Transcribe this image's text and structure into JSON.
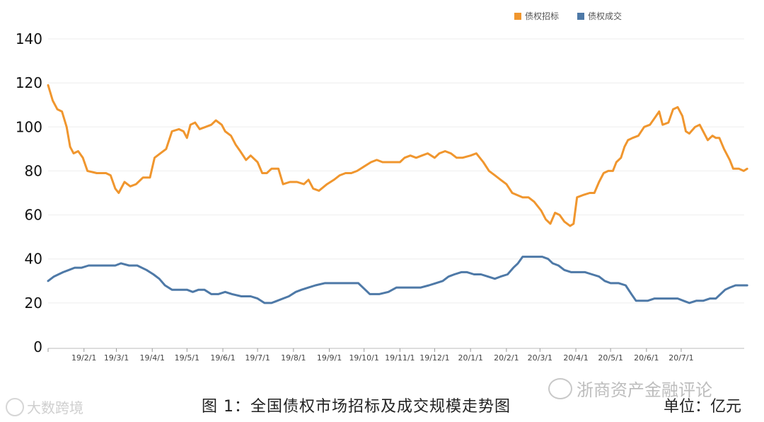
{
  "legend": [
    {
      "label": "债权招标",
      "color": "#F0962E"
    },
    {
      "label": "债权成交",
      "color": "#4E79A7"
    }
  ],
  "caption": "图 1：全国债权市场招标及成交规模走势图",
  "unit": "单位：亿元",
  "watermark_left": "大数跨境",
  "watermark_right": "浙商资产金融评论",
  "watermark_left_icon": "weibo-logo-icon",
  "watermark_right_icon": "wechat-logo-icon",
  "chart_data": {
    "type": "line",
    "y_ticks": [
      0,
      20,
      40,
      60,
      80,
      100,
      120,
      140
    ],
    "ylim": [
      0,
      140
    ],
    "x_ticks": [
      "19/2/1",
      "19/3/1",
      "19/4/1",
      "19/5/1",
      "19/6/1",
      "19/7/1",
      "19/8/1",
      "19/9/1",
      "19/10/1",
      "19/11/1",
      "19/12/1",
      "20/1/1",
      "20/2/1",
      "20/3/1",
      "20/4/1",
      "20/5/1",
      "20/6/1",
      "20/7/1"
    ],
    "x_start": "2019-01-01",
    "x_end": "2020-07-31",
    "grid": "horizontal",
    "series": [
      {
        "name": "债权招标",
        "color": "#F0962E",
        "points": [
          [
            "2019-01-01",
            119
          ],
          [
            "2019-01-05",
            112
          ],
          [
            "2019-01-09",
            108
          ],
          [
            "2019-01-13",
            107
          ],
          [
            "2019-01-17",
            100
          ],
          [
            "2019-01-20",
            91
          ],
          [
            "2019-01-23",
            88
          ],
          [
            "2019-01-27",
            89
          ],
          [
            "2019-01-31",
            86
          ],
          [
            "2019-02-04",
            80
          ],
          [
            "2019-02-12",
            79
          ],
          [
            "2019-02-20",
            79
          ],
          [
            "2019-02-24",
            78
          ],
          [
            "2019-02-28",
            72
          ],
          [
            "2019-03-03",
            70
          ],
          [
            "2019-03-08",
            75
          ],
          [
            "2019-03-13",
            73
          ],
          [
            "2019-03-18",
            74
          ],
          [
            "2019-03-24",
            77
          ],
          [
            "2019-03-30",
            77
          ],
          [
            "2019-04-03",
            86
          ],
          [
            "2019-04-08",
            88
          ],
          [
            "2019-04-13",
            90
          ],
          [
            "2019-04-18",
            98
          ],
          [
            "2019-04-24",
            99
          ],
          [
            "2019-04-28",
            98
          ],
          [
            "2019-05-01",
            95
          ],
          [
            "2019-05-04",
            101
          ],
          [
            "2019-05-08",
            102
          ],
          [
            "2019-05-12",
            99
          ],
          [
            "2019-05-17",
            100
          ],
          [
            "2019-05-22",
            101
          ],
          [
            "2019-05-26",
            103
          ],
          [
            "2019-05-31",
            101
          ],
          [
            "2019-06-03",
            98
          ],
          [
            "2019-06-08",
            96
          ],
          [
            "2019-06-12",
            92
          ],
          [
            "2019-06-16",
            89
          ],
          [
            "2019-06-21",
            85
          ],
          [
            "2019-06-25",
            87
          ],
          [
            "2019-07-01",
            84
          ],
          [
            "2019-07-05",
            79
          ],
          [
            "2019-07-09",
            79
          ],
          [
            "2019-07-13",
            81
          ],
          [
            "2019-07-19",
            81
          ],
          [
            "2019-07-23",
            74
          ],
          [
            "2019-07-29",
            75
          ],
          [
            "2019-08-04",
            75
          ],
          [
            "2019-08-10",
            74
          ],
          [
            "2019-08-14",
            76
          ],
          [
            "2019-08-18",
            72
          ],
          [
            "2019-08-23",
            71
          ],
          [
            "2019-08-30",
            74
          ],
          [
            "2019-09-05",
            76
          ],
          [
            "2019-09-10",
            78
          ],
          [
            "2019-09-15",
            79
          ],
          [
            "2019-09-20",
            79
          ],
          [
            "2019-09-25",
            80
          ],
          [
            "2019-10-01",
            82
          ],
          [
            "2019-10-07",
            84
          ],
          [
            "2019-10-12",
            85
          ],
          [
            "2019-10-17",
            84
          ],
          [
            "2019-10-24",
            84
          ],
          [
            "2019-11-01",
            84
          ],
          [
            "2019-11-05",
            86
          ],
          [
            "2019-11-10",
            87
          ],
          [
            "2019-11-15",
            86
          ],
          [
            "2019-11-20",
            87
          ],
          [
            "2019-11-25",
            88
          ],
          [
            "2019-12-01",
            86
          ],
          [
            "2019-12-05",
            88
          ],
          [
            "2019-12-10",
            89
          ],
          [
            "2019-12-15",
            88
          ],
          [
            "2019-12-20",
            86
          ],
          [
            "2019-12-25",
            86
          ],
          [
            "2020-01-01",
            87
          ],
          [
            "2020-01-06",
            88
          ],
          [
            "2020-01-12",
            84
          ],
          [
            "2020-01-17",
            80
          ],
          [
            "2020-01-22",
            78
          ],
          [
            "2020-01-27",
            76
          ],
          [
            "2020-02-01",
            74
          ],
          [
            "2020-02-06",
            70
          ],
          [
            "2020-02-15",
            68
          ],
          [
            "2020-02-20",
            68
          ],
          [
            "2020-02-25",
            66
          ],
          [
            "2020-03-02",
            62
          ],
          [
            "2020-03-06",
            58
          ],
          [
            "2020-03-10",
            56
          ],
          [
            "2020-03-14",
            61
          ],
          [
            "2020-03-18",
            60
          ],
          [
            "2020-03-22",
            57
          ],
          [
            "2020-03-27",
            55
          ],
          [
            "2020-03-30",
            56
          ],
          [
            "2020-04-02",
            68
          ],
          [
            "2020-04-07",
            69
          ],
          [
            "2020-04-13",
            70
          ],
          [
            "2020-04-17",
            70
          ],
          [
            "2020-04-21",
            75
          ],
          [
            "2020-04-25",
            79
          ],
          [
            "2020-04-29",
            80
          ],
          [
            "2020-05-03",
            80
          ],
          [
            "2020-05-06",
            84
          ],
          [
            "2020-05-10",
            86
          ],
          [
            "2020-05-13",
            91
          ],
          [
            "2020-05-16",
            94
          ],
          [
            "2020-05-20",
            95
          ],
          [
            "2020-05-25",
            96
          ],
          [
            "2020-05-30",
            100
          ],
          [
            "2020-06-04",
            101
          ],
          [
            "2020-06-08",
            104
          ],
          [
            "2020-06-12",
            107
          ],
          [
            "2020-06-15",
            101
          ],
          [
            "2020-06-20",
            102
          ],
          [
            "2020-06-24",
            108
          ],
          [
            "2020-06-28",
            109
          ],
          [
            "2020-07-02",
            105
          ],
          [
            "2020-07-05",
            98
          ],
          [
            "2020-07-08",
            97
          ],
          [
            "2020-07-13",
            100
          ],
          [
            "2020-07-17",
            101
          ],
          [
            "2020-07-20",
            98
          ],
          [
            "2020-07-24",
            94
          ],
          [
            "2020-07-28",
            96
          ],
          [
            "2020-07-31",
            95
          ],
          [
            "2020-08-03",
            95
          ],
          [
            "2020-08-07",
            90
          ],
          [
            "2020-08-12",
            85
          ],
          [
            "2020-08-15",
            81
          ],
          [
            "2020-08-20",
            81
          ],
          [
            "2020-08-24",
            80
          ],
          [
            "2020-08-27",
            81
          ]
        ]
      },
      {
        "name": "债权成交",
        "color": "#4E79A7",
        "points": [
          [
            "2019-01-01",
            30
          ],
          [
            "2019-01-06",
            32
          ],
          [
            "2019-01-10",
            33
          ],
          [
            "2019-01-14",
            34
          ],
          [
            "2019-01-19",
            35
          ],
          [
            "2019-01-24",
            36
          ],
          [
            "2019-01-30",
            36
          ],
          [
            "2019-02-05",
            37
          ],
          [
            "2019-02-12",
            37
          ],
          [
            "2019-02-20",
            37
          ],
          [
            "2019-02-28",
            37
          ],
          [
            "2019-03-05",
            38
          ],
          [
            "2019-03-12",
            37
          ],
          [
            "2019-03-19",
            37
          ],
          [
            "2019-03-27",
            35
          ],
          [
            "2019-04-02",
            33
          ],
          [
            "2019-04-07",
            31
          ],
          [
            "2019-04-12",
            28
          ],
          [
            "2019-04-18",
            26
          ],
          [
            "2019-04-24",
            26
          ],
          [
            "2019-05-01",
            26
          ],
          [
            "2019-05-06",
            25
          ],
          [
            "2019-05-11",
            26
          ],
          [
            "2019-05-16",
            26
          ],
          [
            "2019-05-22",
            24
          ],
          [
            "2019-05-28",
            24
          ],
          [
            "2019-06-03",
            25
          ],
          [
            "2019-06-09",
            24
          ],
          [
            "2019-06-17",
            23
          ],
          [
            "2019-06-25",
            23
          ],
          [
            "2019-07-01",
            22
          ],
          [
            "2019-07-07",
            20
          ],
          [
            "2019-07-13",
            20
          ],
          [
            "2019-07-18",
            21
          ],
          [
            "2019-07-23",
            22
          ],
          [
            "2019-07-28",
            23
          ],
          [
            "2019-08-03",
            25
          ],
          [
            "2019-08-08",
            26
          ],
          [
            "2019-08-14",
            27
          ],
          [
            "2019-08-20",
            28
          ],
          [
            "2019-08-28",
            29
          ],
          [
            "2019-09-05",
            29
          ],
          [
            "2019-09-13",
            29
          ],
          [
            "2019-09-20",
            29
          ],
          [
            "2019-09-26",
            29
          ],
          [
            "2019-10-02",
            26
          ],
          [
            "2019-10-06",
            24
          ],
          [
            "2019-10-14",
            24
          ],
          [
            "2019-10-22",
            25
          ],
          [
            "2019-10-29",
            27
          ],
          [
            "2019-11-05",
            27
          ],
          [
            "2019-11-12",
            27
          ],
          [
            "2019-11-19",
            27
          ],
          [
            "2019-11-26",
            28
          ],
          [
            "2019-12-02",
            29
          ],
          [
            "2019-12-08",
            30
          ],
          [
            "2019-12-13",
            32
          ],
          [
            "2019-12-18",
            33
          ],
          [
            "2019-12-24",
            34
          ],
          [
            "2019-12-29",
            34
          ],
          [
            "2020-01-04",
            33
          ],
          [
            "2020-01-10",
            33
          ],
          [
            "2020-01-16",
            32
          ],
          [
            "2020-01-22",
            31
          ],
          [
            "2020-01-27",
            32
          ],
          [
            "2020-02-02",
            33
          ],
          [
            "2020-02-07",
            36
          ],
          [
            "2020-02-11",
            38
          ],
          [
            "2020-02-15",
            41
          ],
          [
            "2020-02-20",
            41
          ],
          [
            "2020-02-26",
            41
          ],
          [
            "2020-03-03",
            41
          ],
          [
            "2020-03-08",
            40
          ],
          [
            "2020-03-12",
            38
          ],
          [
            "2020-03-17",
            37
          ],
          [
            "2020-03-22",
            35
          ],
          [
            "2020-03-28",
            34
          ],
          [
            "2020-04-03",
            34
          ],
          [
            "2020-04-09",
            34
          ],
          [
            "2020-04-15",
            33
          ],
          [
            "2020-04-21",
            32
          ],
          [
            "2020-04-26",
            30
          ],
          [
            "2020-05-01",
            29
          ],
          [
            "2020-05-08",
            29
          ],
          [
            "2020-05-14",
            28
          ],
          [
            "2020-05-19",
            24
          ],
          [
            "2020-05-23",
            21
          ],
          [
            "2020-05-28",
            21
          ],
          [
            "2020-06-02",
            21
          ],
          [
            "2020-06-08",
            22
          ],
          [
            "2020-06-15",
            22
          ],
          [
            "2020-06-22",
            22
          ],
          [
            "2020-06-28",
            22
          ],
          [
            "2020-07-03",
            21
          ],
          [
            "2020-07-08",
            20
          ],
          [
            "2020-07-14",
            21
          ],
          [
            "2020-07-20",
            21
          ],
          [
            "2020-07-26",
            22
          ],
          [
            "2020-07-31",
            22
          ],
          [
            "2020-08-04",
            24
          ],
          [
            "2020-08-08",
            26
          ],
          [
            "2020-08-12",
            27
          ],
          [
            "2020-08-17",
            28
          ],
          [
            "2020-08-22",
            28
          ],
          [
            "2020-08-27",
            28
          ]
        ]
      }
    ]
  }
}
